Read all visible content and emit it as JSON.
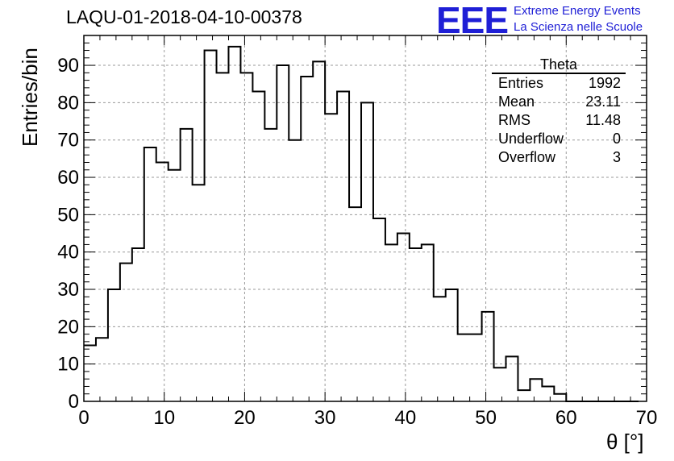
{
  "title": "LAQU-01-2018-04-10-00378",
  "logo": {
    "mark": "EEE",
    "line1": "Extreme Energy Events",
    "line2": "La Scienza nelle Scuole",
    "color": "#1f1fd6"
  },
  "stats": {
    "title": "Theta",
    "rows": [
      {
        "label": "Entries",
        "value": "1992"
      },
      {
        "label": "Mean",
        "value": "23.11"
      },
      {
        "label": "RMS",
        "value": "11.48"
      },
      {
        "label": "Underflow",
        "value": "0"
      },
      {
        "label": "Overflow",
        "value": "3"
      }
    ]
  },
  "chart_data": {
    "type": "bar",
    "title": "LAQU-01-2018-04-10-00378",
    "xlabel": "θ [°]",
    "ylabel": "Entries/bin",
    "xlim": [
      0,
      70
    ],
    "ylim": [
      0,
      98
    ],
    "bin_width": 1.5,
    "grid": true,
    "x_ticks": [
      0,
      10,
      20,
      30,
      40,
      50,
      60,
      70
    ],
    "y_ticks": [
      0,
      10,
      20,
      30,
      40,
      50,
      60,
      70,
      80,
      90
    ],
    "values": [
      15,
      17,
      30,
      37,
      41,
      68,
      64,
      62,
      73,
      58,
      94,
      88,
      95,
      88,
      83,
      73,
      90,
      70,
      87,
      91,
      77,
      83,
      52,
      80,
      49,
      42,
      45,
      41,
      42,
      28,
      30,
      18,
      18,
      24,
      9,
      12,
      3,
      6,
      4,
      2,
      0,
      0,
      0,
      0,
      0,
      0,
      0
    ]
  }
}
